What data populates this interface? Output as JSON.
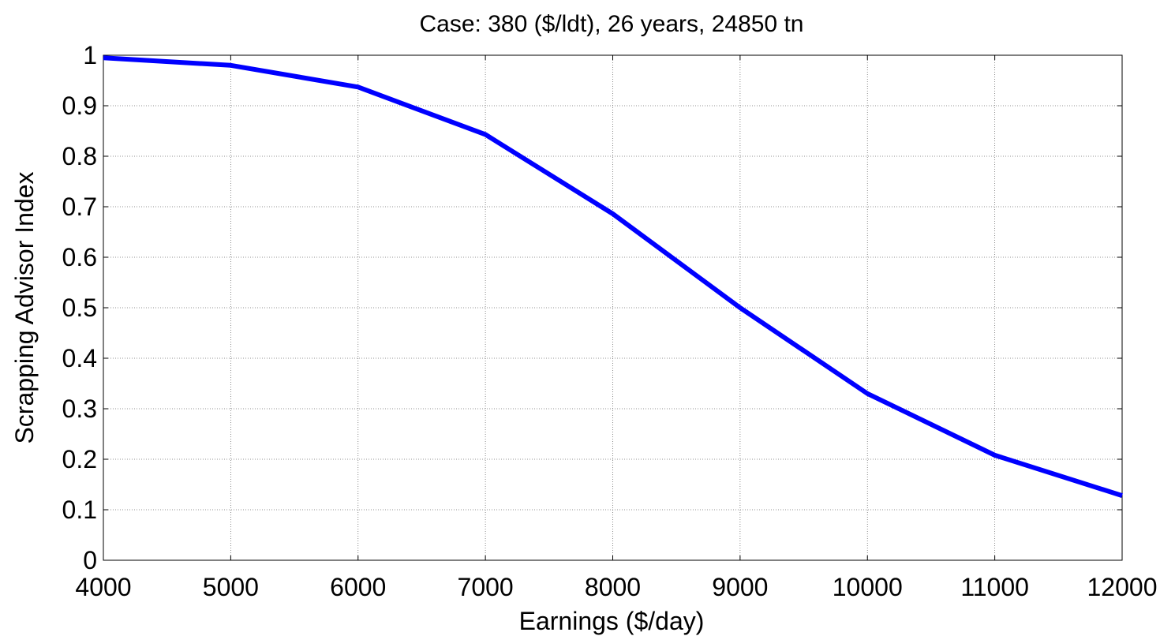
{
  "chart_data": {
    "type": "line",
    "title": "Case: 380 ($/ldt), 26 years, 24850 tn",
    "xlabel": "Earnings ($/day)",
    "ylabel": "Scrapping Advisor Index",
    "xlim": [
      4000,
      12000
    ],
    "ylim": [
      0,
      1
    ],
    "xticks": [
      4000,
      5000,
      6000,
      7000,
      8000,
      9000,
      10000,
      11000,
      12000
    ],
    "yticks": [
      0,
      0.1,
      0.2,
      0.3,
      0.4,
      0.5,
      0.6,
      0.7,
      0.8,
      0.9,
      1
    ],
    "xtick_labels": [
      "4000",
      "5000",
      "6000",
      "7000",
      "8000",
      "9000",
      "10000",
      "11000",
      "12000"
    ],
    "ytick_labels": [
      "0",
      "0.1",
      "0.2",
      "0.3",
      "0.4",
      "0.5",
      "0.6",
      "0.7",
      "0.8",
      "0.9",
      "1"
    ],
    "grid": true,
    "series": [
      {
        "color": "#0000ff",
        "x": [
          4000,
          5000,
          6000,
          7000,
          8000,
          9000,
          10000,
          11000,
          12000
        ],
        "y": [
          0.995,
          0.98,
          0.937,
          0.843,
          0.686,
          0.5,
          0.33,
          0.208,
          0.128
        ]
      }
    ]
  }
}
